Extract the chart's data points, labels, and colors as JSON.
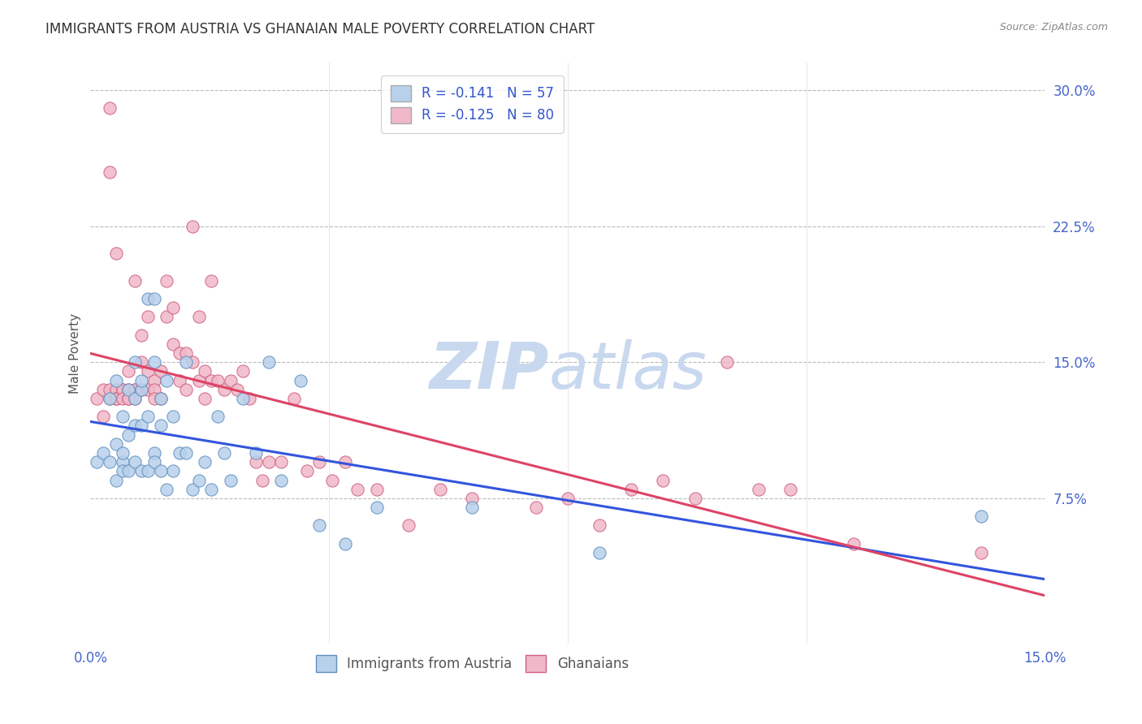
{
  "title": "IMMIGRANTS FROM AUSTRIA VS GHANAIAN MALE POVERTY CORRELATION CHART",
  "source": "Source: ZipAtlas.com",
  "ylabel": "Male Poverty",
  "yticks": [
    0.0,
    0.075,
    0.15,
    0.225,
    0.3
  ],
  "ytick_labels": [
    "",
    "7.5%",
    "15.0%",
    "22.5%",
    "30.0%"
  ],
  "xlim": [
    0.0,
    0.15
  ],
  "ylim": [
    -0.005,
    0.315
  ],
  "legend_entries": [
    {
      "label_r": "R = ",
      "label_rv": "-0.141",
      "label_n": "   N = ",
      "label_nv": "57",
      "color": "#b8d0ea"
    },
    {
      "label_r": "R = ",
      "label_rv": "-0.125",
      "label_n": "   N = ",
      "label_nv": "80",
      "color": "#f0b8c8"
    }
  ],
  "series1_color": "#b8d0ea",
  "series1_edge": "#6090c0",
  "series2_color": "#f0b8c8",
  "series2_edge": "#d06080",
  "line1_color": "#3355dd",
  "line2_color": "#dd4466",
  "watermark_zip": "ZIP",
  "watermark_atlas": "atlas",
  "watermark_color_zip": "#c8d8ee",
  "watermark_color_atlas": "#c8d8ee",
  "background_color": "#ffffff",
  "grid_color": "#bbbbbb",
  "title_color": "#333333",
  "tick_color": "#4466cc",
  "austria_x": [
    0.001,
    0.002,
    0.003,
    0.003,
    0.004,
    0.004,
    0.004,
    0.005,
    0.005,
    0.005,
    0.005,
    0.006,
    0.006,
    0.006,
    0.007,
    0.007,
    0.007,
    0.007,
    0.008,
    0.008,
    0.008,
    0.008,
    0.009,
    0.009,
    0.009,
    0.01,
    0.01,
    0.01,
    0.01,
    0.011,
    0.011,
    0.011,
    0.012,
    0.012,
    0.013,
    0.013,
    0.014,
    0.015,
    0.015,
    0.016,
    0.017,
    0.018,
    0.019,
    0.02,
    0.021,
    0.022,
    0.024,
    0.026,
    0.028,
    0.03,
    0.033,
    0.036,
    0.04,
    0.045,
    0.06,
    0.08,
    0.14
  ],
  "austria_y": [
    0.095,
    0.1,
    0.13,
    0.095,
    0.085,
    0.14,
    0.105,
    0.095,
    0.12,
    0.1,
    0.09,
    0.135,
    0.11,
    0.09,
    0.15,
    0.13,
    0.115,
    0.095,
    0.135,
    0.115,
    0.14,
    0.09,
    0.12,
    0.09,
    0.185,
    0.15,
    0.185,
    0.1,
    0.095,
    0.13,
    0.115,
    0.09,
    0.14,
    0.08,
    0.12,
    0.09,
    0.1,
    0.15,
    0.1,
    0.08,
    0.085,
    0.095,
    0.08,
    0.12,
    0.1,
    0.085,
    0.13,
    0.1,
    0.15,
    0.085,
    0.14,
    0.06,
    0.05,
    0.07,
    0.07,
    0.045,
    0.065
  ],
  "ghana_x": [
    0.001,
    0.002,
    0.002,
    0.003,
    0.003,
    0.003,
    0.003,
    0.004,
    0.004,
    0.004,
    0.004,
    0.005,
    0.005,
    0.005,
    0.006,
    0.006,
    0.006,
    0.006,
    0.007,
    0.007,
    0.007,
    0.007,
    0.008,
    0.008,
    0.008,
    0.009,
    0.009,
    0.009,
    0.01,
    0.01,
    0.01,
    0.011,
    0.011,
    0.012,
    0.012,
    0.013,
    0.013,
    0.014,
    0.014,
    0.015,
    0.015,
    0.016,
    0.016,
    0.017,
    0.017,
    0.018,
    0.018,
    0.019,
    0.019,
    0.02,
    0.021,
    0.022,
    0.023,
    0.024,
    0.025,
    0.026,
    0.027,
    0.028,
    0.03,
    0.032,
    0.034,
    0.036,
    0.038,
    0.04,
    0.042,
    0.045,
    0.05,
    0.055,
    0.06,
    0.07,
    0.075,
    0.08,
    0.085,
    0.09,
    0.095,
    0.1,
    0.105,
    0.11,
    0.12,
    0.14
  ],
  "ghana_y": [
    0.13,
    0.135,
    0.12,
    0.29,
    0.255,
    0.13,
    0.135,
    0.21,
    0.135,
    0.13,
    0.13,
    0.135,
    0.135,
    0.13,
    0.135,
    0.13,
    0.145,
    0.13,
    0.135,
    0.135,
    0.195,
    0.13,
    0.165,
    0.15,
    0.135,
    0.175,
    0.145,
    0.135,
    0.14,
    0.135,
    0.13,
    0.145,
    0.13,
    0.195,
    0.175,
    0.18,
    0.16,
    0.14,
    0.155,
    0.155,
    0.135,
    0.15,
    0.225,
    0.175,
    0.14,
    0.145,
    0.13,
    0.195,
    0.14,
    0.14,
    0.135,
    0.14,
    0.135,
    0.145,
    0.13,
    0.095,
    0.085,
    0.095,
    0.095,
    0.13,
    0.09,
    0.095,
    0.085,
    0.095,
    0.08,
    0.08,
    0.06,
    0.08,
    0.075,
    0.07,
    0.075,
    0.06,
    0.08,
    0.085,
    0.075,
    0.15,
    0.08,
    0.08,
    0.05,
    0.045
  ]
}
